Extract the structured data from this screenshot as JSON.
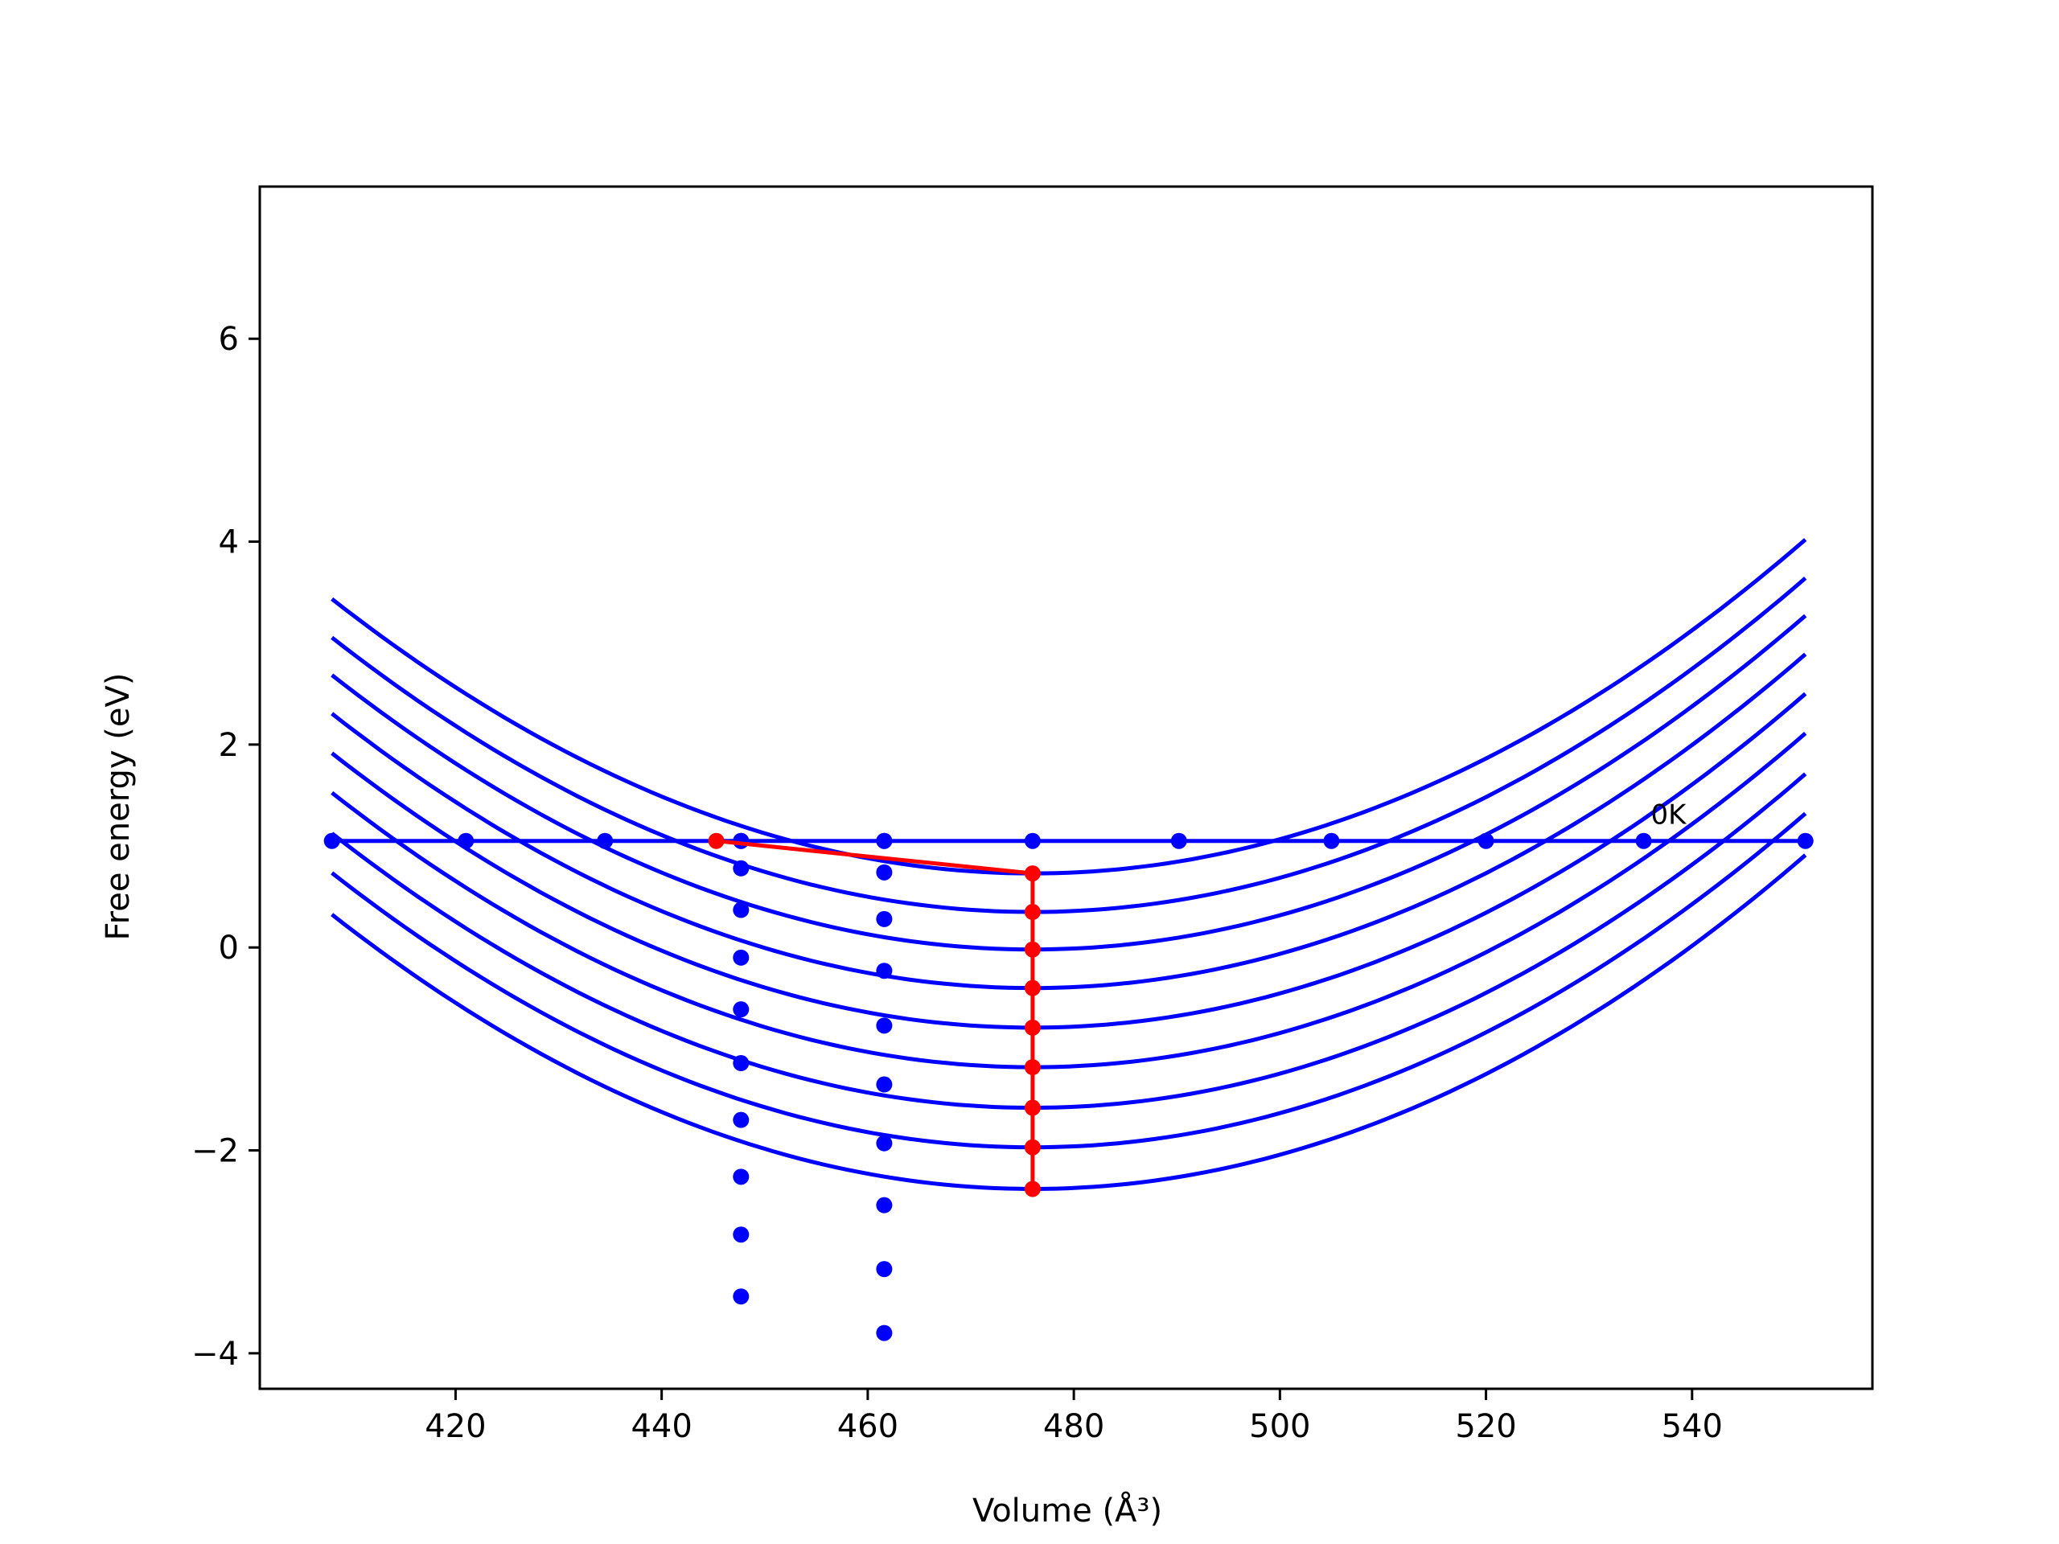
{
  "chart_data": {
    "type": "line",
    "xlabel": "Volume (Å³)",
    "ylabel": "Free energy (eV)",
    "xlim": [
      401,
      557.5
    ],
    "ylim": [
      -4.35,
      7.5
    ],
    "xticks": [
      420,
      440,
      460,
      480,
      500,
      520,
      540
    ],
    "yticks": [
      -4,
      -2,
      0,
      2,
      4,
      6
    ],
    "xtick_labels": [
      "420",
      "440",
      "460",
      "480",
      "500",
      "520",
      "540"
    ],
    "ytick_labels": [
      "−4",
      "−2",
      "0",
      "2",
      "4",
      "6"
    ],
    "grid": false,
    "colors": {
      "curves": "#0000ff",
      "path": "#ff0000",
      "axes": "#000000"
    },
    "curves": {
      "x_range": [
        408,
        551
      ],
      "a": 0.000585,
      "vertex_x": [
        476,
        476,
        476,
        476,
        476,
        476,
        476,
        476,
        476
      ],
      "vertex_y": [
        0.73,
        0.35,
        -0.02,
        -0.4,
        -0.79,
        -1.18,
        -1.58,
        -1.97,
        -2.38
      ]
    },
    "horizontal_line": {
      "y": 1.05,
      "x": [
        408,
        421,
        434.5,
        447.7,
        461.6,
        476,
        490.2,
        505,
        520,
        535.3,
        551
      ]
    },
    "dot_columns": [
      {
        "x": 447.7,
        "y": [
          1.05,
          0.78,
          0.37,
          -0.1,
          -0.61,
          -1.14,
          -1.7,
          -2.26,
          -2.83,
          -3.44
        ]
      },
      {
        "x": 461.6,
        "y": [
          1.05,
          0.74,
          0.28,
          -0.23,
          -0.77,
          -1.35,
          -1.93,
          -2.54,
          -3.17,
          -3.8
        ]
      }
    ],
    "red_path": {
      "x": [
        445.3,
        476,
        476,
        476,
        476,
        476,
        476,
        476,
        476,
        476
      ],
      "y": [
        1.05,
        0.73,
        0.35,
        -0.02,
        -0.4,
        -0.79,
        -1.18,
        -1.58,
        -1.97,
        -2.38
      ]
    },
    "annotations": [
      {
        "text": "0K",
        "x": 536,
        "y": 1.22
      }
    ]
  }
}
